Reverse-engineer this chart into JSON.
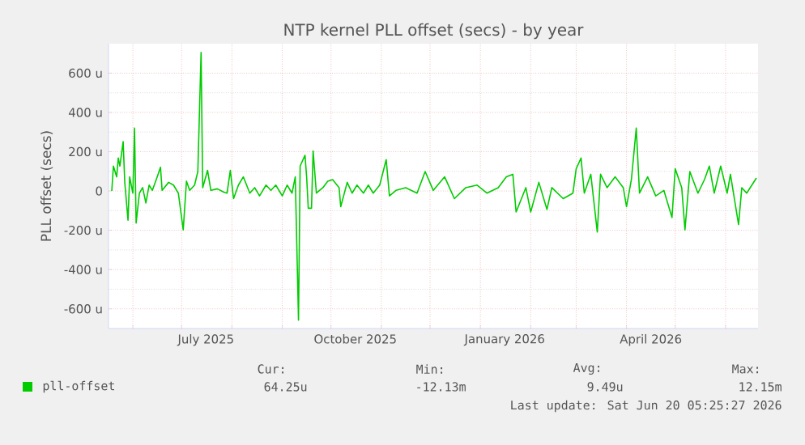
{
  "chart_data": {
    "type": "line",
    "title": "NTP kernel PLL offset (secs) - by year",
    "ylabel": "PLL offset (secs)",
    "xlim": [
      "2025-05-17",
      "2026-06-21"
    ],
    "ylim": [
      -700,
      750
    ],
    "xticks": [
      {
        "value": "2025-06-01",
        "label": null
      },
      {
        "value": "2025-07-01",
        "label": null
      },
      {
        "value": "2025-08-01",
        "label": null
      },
      {
        "value": "2025-09-01",
        "label": null
      },
      {
        "value": "2025-10-01",
        "label": null
      },
      {
        "value": "2025-11-01",
        "label": null
      },
      {
        "value": "2025-12-01",
        "label": null
      },
      {
        "value": "2026-01-01",
        "label": null
      },
      {
        "value": "2026-02-01",
        "label": null
      },
      {
        "value": "2026-03-01",
        "label": null
      },
      {
        "value": "2026-04-01",
        "label": null
      },
      {
        "value": "2026-05-01",
        "label": null
      },
      {
        "value": "2026-06-01",
        "label": null
      },
      {
        "value": "2025-07-16",
        "label": "July 2025"
      },
      {
        "value": "2025-10-16",
        "label": "October 2025"
      },
      {
        "value": "2026-01-16",
        "label": "January 2026"
      },
      {
        "value": "2026-04-16",
        "label": "April 2026"
      }
    ],
    "yticks": [
      {
        "value": -600,
        "label": "-600 u"
      },
      {
        "value": -400,
        "label": "-400 u"
      },
      {
        "value": -200,
        "label": "-200 u"
      },
      0,
      {
        "value": 200,
        "label": "200 u"
      },
      {
        "value": 400,
        "label": "400 u"
      },
      {
        "value": 600,
        "label": "600 u"
      }
    ],
    "grid": true,
    "legend": "bottom",
    "annotations": [
      "Cur:",
      "Min:",
      "Avg:",
      "Max:",
      "64.25u",
      "-12.13m",
      "9.49u",
      "12.15m",
      "Last update: Sat Jun 20 05:25:27 2026"
    ],
    "series": [
      {
        "name": "pll-offset",
        "color": "#00cc00",
        "x": [
          "2025-05-19",
          "2025-05-20",
          "2025-05-22",
          "2025-05-23",
          "2025-05-24",
          "2025-05-26",
          "2025-05-27",
          "2025-05-29",
          "2025-05-30",
          "2025-06-01",
          "2025-06-02",
          "2025-06-03",
          "2025-06-05",
          "2025-06-07",
          "2025-06-09",
          "2025-06-11",
          "2025-06-13",
          "2025-06-16",
          "2025-06-18",
          "2025-06-19",
          "2025-06-23",
          "2025-06-26",
          "2025-06-29",
          "2025-07-02",
          "2025-07-04",
          "2025-07-06",
          "2025-07-09",
          "2025-07-11",
          "2025-07-13",
          "2025-07-14",
          "2025-07-17",
          "2025-07-19",
          "2025-07-23",
          "2025-07-27",
          "2025-07-29",
          "2025-07-31",
          "2025-08-02",
          "2025-08-05",
          "2025-08-08",
          "2025-08-12",
          "2025-08-15",
          "2025-08-18",
          "2025-08-22",
          "2025-08-25",
          "2025-08-28",
          "2025-09-01",
          "2025-09-04",
          "2025-09-07",
          "2025-09-09",
          "2025-09-11",
          "2025-09-12",
          "2025-09-15",
          "2025-09-16",
          "2025-09-17",
          "2025-09-19",
          "2025-09-20",
          "2025-09-22",
          "2025-09-26",
          "2025-09-29",
          "2025-10-02",
          "2025-10-06",
          "2025-10-07",
          "2025-10-11",
          "2025-10-14",
          "2025-10-17",
          "2025-10-21",
          "2025-10-24",
          "2025-10-27",
          "2025-10-31",
          "2025-11-04",
          "2025-11-06",
          "2025-11-10",
          "2025-11-16",
          "2025-11-23",
          "2025-11-28",
          "2025-12-03",
          "2025-12-10",
          "2025-12-16",
          "2025-12-23",
          "2025-12-30",
          "2026-01-05",
          "2026-01-12",
          "2026-01-17",
          "2026-01-21",
          "2026-01-23",
          "2026-01-29",
          "2026-02-01",
          "2026-02-06",
          "2026-02-11",
          "2026-02-14",
          "2026-02-21",
          "2026-02-27",
          "2026-03-01",
          "2026-03-04",
          "2026-03-06",
          "2026-03-10",
          "2026-03-14",
          "2026-03-16",
          "2026-03-20",
          "2026-03-25",
          "2026-03-30",
          "2026-04-01",
          "2026-04-04",
          "2026-04-07",
          "2026-04-09",
          "2026-04-14",
          "2026-04-19",
          "2026-04-24",
          "2026-04-29",
          "2026-05-01",
          "2026-05-05",
          "2026-05-07",
          "2026-05-10",
          "2026-05-15",
          "2026-05-19",
          "2026-05-22",
          "2026-05-25",
          "2026-05-29",
          "2026-06-02",
          "2026-06-04",
          "2026-06-09",
          "2026-06-11",
          "2026-06-14",
          "2026-06-20"
        ],
        "values": [
          0,
          127,
          72,
          168,
          127,
          251,
          44,
          -149,
          72,
          -11,
          320,
          -163,
          -11,
          17,
          -61,
          30,
          3,
          72,
          121,
          3,
          44,
          30,
          -11,
          -198,
          50,
          3,
          30,
          99,
          705,
          17,
          105,
          3,
          11,
          -6,
          -11,
          105,
          -39,
          30,
          72,
          -11,
          17,
          -25,
          30,
          3,
          30,
          -25,
          30,
          -11,
          72,
          -658,
          127,
          182,
          72,
          -88,
          -88,
          204,
          -11,
          17,
          50,
          58,
          17,
          -80,
          44,
          -11,
          30,
          -11,
          30,
          -11,
          30,
          160,
          -25,
          3,
          17,
          -11,
          99,
          3,
          72,
          -39,
          17,
          30,
          -11,
          17,
          72,
          85,
          -107,
          17,
          -107,
          44,
          -94,
          17,
          -39,
          -11,
          113,
          168,
          -11,
          85,
          -209,
          85,
          17,
          72,
          17,
          -80,
          58,
          320,
          -11,
          72,
          -25,
          3,
          -135,
          113,
          17,
          -198,
          99,
          -11,
          58,
          127,
          -11,
          127,
          -11,
          85,
          -171,
          17,
          -11,
          66
        ]
      }
    ]
  }
}
